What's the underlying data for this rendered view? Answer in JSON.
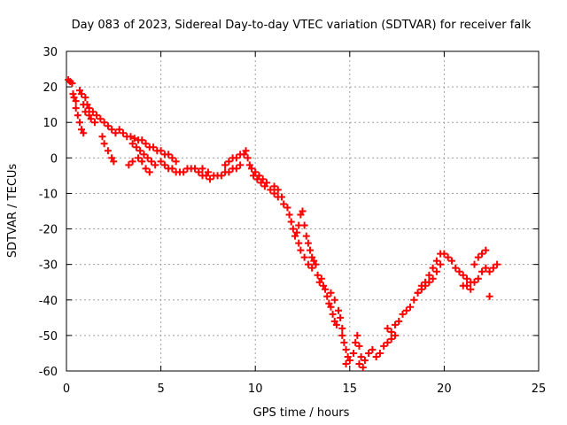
{
  "chart_data": {
    "type": "scatter",
    "title": "Day 083 of 2023, Sidereal Day-to-day VTEC variation (SDTVAR) for receiver falk",
    "xlabel": "GPS time / hours",
    "ylabel": "SDTVAR / TECUs",
    "xlim": [
      0,
      25
    ],
    "ylim": [
      -60,
      30
    ],
    "xticks": [
      "0",
      "5",
      "10",
      "15",
      "20",
      "25"
    ],
    "yticks": [
      "-60",
      "-50",
      "-40",
      "-30",
      "-20",
      "-10",
      "0",
      "10",
      "20",
      "30"
    ],
    "grid": true,
    "marker": "+",
    "series": [
      {
        "name": "SDTVAR",
        "color": "#ff0000",
        "points": [
          [
            0.1,
            22
          ],
          [
            0.2,
            21.5
          ],
          [
            0.3,
            21
          ],
          [
            0.35,
            18
          ],
          [
            0.4,
            17
          ],
          [
            0.5,
            16
          ],
          [
            0.5,
            14
          ],
          [
            0.6,
            12
          ],
          [
            0.7,
            10
          ],
          [
            0.8,
            8
          ],
          [
            0.9,
            7
          ],
          [
            0.7,
            19
          ],
          [
            0.8,
            18
          ],
          [
            1.0,
            17
          ],
          [
            1.1,
            15
          ],
          [
            1.2,
            14
          ],
          [
            1.4,
            13
          ],
          [
            1.6,
            12
          ],
          [
            0.9,
            15
          ],
          [
            1.0,
            13
          ],
          [
            1.2,
            12
          ],
          [
            1.3,
            11
          ],
          [
            1.5,
            10
          ],
          [
            1.8,
            11
          ],
          [
            2.0,
            10
          ],
          [
            2.2,
            9
          ],
          [
            2.4,
            8
          ],
          [
            2.6,
            7
          ],
          [
            2.8,
            8
          ],
          [
            3.0,
            7
          ],
          [
            3.2,
            6
          ],
          [
            1.9,
            6
          ],
          [
            2.0,
            4
          ],
          [
            2.2,
            2
          ],
          [
            2.4,
            0
          ],
          [
            2.5,
            -1
          ],
          [
            3.4,
            6
          ],
          [
            3.6,
            5.5
          ],
          [
            3.8,
            5
          ],
          [
            4.0,
            5
          ],
          [
            4.2,
            4
          ],
          [
            4.4,
            3
          ],
          [
            4.6,
            3
          ],
          [
            4.8,
            2
          ],
          [
            3.5,
            4
          ],
          [
            3.7,
            3
          ],
          [
            3.9,
            2
          ],
          [
            4.1,
            1
          ],
          [
            4.3,
            0
          ],
          [
            4.5,
            -1
          ],
          [
            4.7,
            -2
          ],
          [
            3.8,
            0
          ],
          [
            4.0,
            -1
          ],
          [
            4.2,
            -3
          ],
          [
            4.4,
            -4
          ],
          [
            3.3,
            -2
          ],
          [
            3.5,
            -1
          ],
          [
            5.0,
            2
          ],
          [
            5.2,
            1
          ],
          [
            5.4,
            1
          ],
          [
            5.6,
            0
          ],
          [
            5.8,
            -1
          ],
          [
            5.0,
            -1
          ],
          [
            5.2,
            -2
          ],
          [
            5.4,
            -3
          ],
          [
            5.6,
            -3
          ],
          [
            5.8,
            -4
          ],
          [
            6.0,
            -4
          ],
          [
            6.2,
            -4
          ],
          [
            6.4,
            -3
          ],
          [
            6.6,
            -3
          ],
          [
            6.8,
            -3
          ],
          [
            7.0,
            -4
          ],
          [
            7.2,
            -5
          ],
          [
            7.4,
            -5
          ],
          [
            7.6,
            -6
          ],
          [
            7.8,
            -5
          ],
          [
            8.0,
            -5
          ],
          [
            7.2,
            -3
          ],
          [
            7.5,
            -4
          ],
          [
            8.2,
            -5
          ],
          [
            8.4,
            -4
          ],
          [
            8.6,
            -4
          ],
          [
            8.8,
            -3
          ],
          [
            9.0,
            -3
          ],
          [
            9.2,
            -2
          ],
          [
            8.4,
            -2
          ],
          [
            8.6,
            -1
          ],
          [
            8.8,
            0
          ],
          [
            9.0,
            0
          ],
          [
            9.2,
            1
          ],
          [
            9.4,
            1
          ],
          [
            9.5,
            2
          ],
          [
            9.6,
            0
          ],
          [
            9.7,
            -2
          ],
          [
            9.8,
            -3
          ],
          [
            10.0,
            -4
          ],
          [
            10.2,
            -5
          ],
          [
            10.4,
            -6
          ],
          [
            10.6,
            -7
          ],
          [
            9.9,
            -5
          ],
          [
            10.1,
            -6
          ],
          [
            10.3,
            -7
          ],
          [
            10.5,
            -8
          ],
          [
            10.8,
            -9
          ],
          [
            11.0,
            -10
          ],
          [
            11.2,
            -11
          ],
          [
            11.0,
            -8
          ],
          [
            11.2,
            -9
          ],
          [
            11.4,
            -11
          ],
          [
            11.5,
            -13
          ],
          [
            11.7,
            -14
          ],
          [
            11.8,
            -16
          ],
          [
            11.9,
            -18
          ],
          [
            12.0,
            -20
          ],
          [
            12.1,
            -22
          ],
          [
            12.2,
            -21
          ],
          [
            12.3,
            -19
          ],
          [
            12.4,
            -16
          ],
          [
            12.5,
            -15
          ],
          [
            12.6,
            -19
          ],
          [
            12.7,
            -22
          ],
          [
            12.8,
            -24
          ],
          [
            12.9,
            -26
          ],
          [
            13.0,
            -28
          ],
          [
            12.3,
            -24
          ],
          [
            12.4,
            -26
          ],
          [
            12.6,
            -28
          ],
          [
            12.8,
            -30
          ],
          [
            13.0,
            -31
          ],
          [
            13.1,
            -29
          ],
          [
            13.2,
            -30
          ],
          [
            13.3,
            -33
          ],
          [
            13.4,
            -35
          ],
          [
            13.5,
            -34
          ],
          [
            13.6,
            -36
          ],
          [
            13.7,
            -37
          ],
          [
            13.8,
            -39
          ],
          [
            13.9,
            -41
          ],
          [
            14.0,
            -42
          ],
          [
            14.1,
            -44
          ],
          [
            14.2,
            -46
          ],
          [
            14.3,
            -47
          ],
          [
            14.0,
            -38
          ],
          [
            14.2,
            -40
          ],
          [
            14.4,
            -43
          ],
          [
            14.5,
            -45
          ],
          [
            14.6,
            -48
          ],
          [
            14.6,
            -50
          ],
          [
            14.7,
            -52
          ],
          [
            14.8,
            -54
          ],
          [
            14.9,
            -56
          ],
          [
            15.0,
            -57
          ],
          [
            14.8,
            -58
          ],
          [
            15.2,
            -55
          ],
          [
            15.3,
            -52
          ],
          [
            15.4,
            -50
          ],
          [
            15.5,
            -53
          ],
          [
            15.6,
            -56
          ],
          [
            15.5,
            -58
          ],
          [
            15.7,
            -59
          ],
          [
            15.8,
            -57
          ],
          [
            16.0,
            -55
          ],
          [
            16.2,
            -54
          ],
          [
            16.4,
            -56
          ],
          [
            16.6,
            -55
          ],
          [
            16.8,
            -53
          ],
          [
            17.0,
            -52
          ],
          [
            17.2,
            -51
          ],
          [
            17.4,
            -50
          ],
          [
            17.0,
            -48
          ],
          [
            17.2,
            -49
          ],
          [
            17.4,
            -47
          ],
          [
            17.6,
            -46
          ],
          [
            17.8,
            -44
          ],
          [
            18.0,
            -43
          ],
          [
            18.2,
            -42
          ],
          [
            18.4,
            -40
          ],
          [
            18.6,
            -38
          ],
          [
            18.8,
            -36
          ],
          [
            19.0,
            -35
          ],
          [
            19.2,
            -33
          ],
          [
            19.4,
            -31
          ],
          [
            19.6,
            -29
          ],
          [
            19.8,
            -27
          ],
          [
            18.6,
            -38
          ],
          [
            18.8,
            -37
          ],
          [
            19.0,
            -36
          ],
          [
            19.2,
            -35
          ],
          [
            19.4,
            -34
          ],
          [
            19.6,
            -32
          ],
          [
            19.8,
            -30
          ],
          [
            20.0,
            -27
          ],
          [
            20.2,
            -28
          ],
          [
            20.4,
            -29
          ],
          [
            20.6,
            -31
          ],
          [
            20.8,
            -32
          ],
          [
            21.0,
            -33
          ],
          [
            21.2,
            -34
          ],
          [
            21.4,
            -35
          ],
          [
            21.0,
            -36
          ],
          [
            21.2,
            -36
          ],
          [
            21.4,
            -37
          ],
          [
            21.6,
            -35
          ],
          [
            21.8,
            -34
          ],
          [
            22.0,
            -32
          ],
          [
            22.2,
            -31
          ],
          [
            21.6,
            -30
          ],
          [
            21.8,
            -28
          ],
          [
            22.0,
            -27
          ],
          [
            22.2,
            -26
          ],
          [
            22.4,
            -39
          ],
          [
            22.4,
            -32
          ],
          [
            22.6,
            -31
          ],
          [
            22.8,
            -30
          ]
        ]
      }
    ]
  }
}
